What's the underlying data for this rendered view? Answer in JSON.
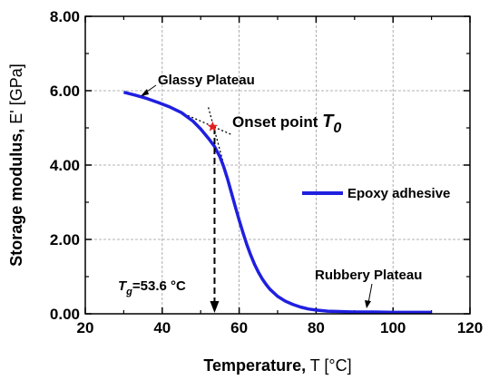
{
  "chart_data": {
    "type": "line",
    "xlabel_bold": "Temperature,",
    "xlabel_rest": " T [°C]",
    "ylabel_bold": "Storage modulus,",
    "ylabel_rest": " E' [GPa]",
    "xlim": [
      20,
      120
    ],
    "ylim": [
      0,
      8
    ],
    "xticks": [
      20,
      40,
      60,
      80,
      100,
      120
    ],
    "yticks": [
      0,
      2,
      4,
      6,
      8
    ],
    "xtick_labels": [
      "20",
      "40",
      "60",
      "80",
      "100",
      "120"
    ],
    "ytick_labels": [
      "0.00",
      "2.00",
      "4.00",
      "6.00",
      "8.00"
    ],
    "grid": true,
    "legend_position": "right-middle",
    "series": [
      {
        "name": "Epoxy adhesive",
        "color": "#1f1fe0",
        "x": [
          30,
          33,
          36,
          39,
          42,
          45,
          48,
          50,
          52,
          53.6,
          55,
          56,
          57,
          58,
          59,
          60,
          61,
          62,
          63,
          64,
          65,
          66,
          67,
          68,
          70,
          72,
          74,
          76,
          78,
          80,
          83,
          86,
          90,
          95,
          100,
          105,
          110
        ],
        "y": [
          5.96,
          5.88,
          5.79,
          5.68,
          5.56,
          5.41,
          5.18,
          4.97,
          4.72,
          4.5,
          4.22,
          3.95,
          3.62,
          3.25,
          2.88,
          2.52,
          2.18,
          1.86,
          1.58,
          1.33,
          1.12,
          0.94,
          0.79,
          0.66,
          0.47,
          0.34,
          0.25,
          0.18,
          0.13,
          0.1,
          0.07,
          0.06,
          0.05,
          0.05,
          0.04,
          0.04,
          0.04
        ]
      }
    ],
    "tangent_lines": [
      {
        "x": [
          35,
          58
        ],
        "y": [
          5.86,
          4.82
        ]
      },
      {
        "x": [
          52,
          61
        ],
        "y": [
          5.55,
          2.1
        ]
      }
    ],
    "onset_point": {
      "x": 53.1,
      "y": 5.03,
      "color": "#e02020"
    },
    "tg_value": 53.6,
    "annotations": {
      "glassy": "Glassy Plateau",
      "onset_label": "Onset point ",
      "onset_symbol": "T",
      "onset_sub": "0",
      "tg_symbol": "T",
      "tg_sub": "g",
      "tg_text": "=53.6 °C",
      "rubbery": "Rubbery Plateau"
    }
  }
}
